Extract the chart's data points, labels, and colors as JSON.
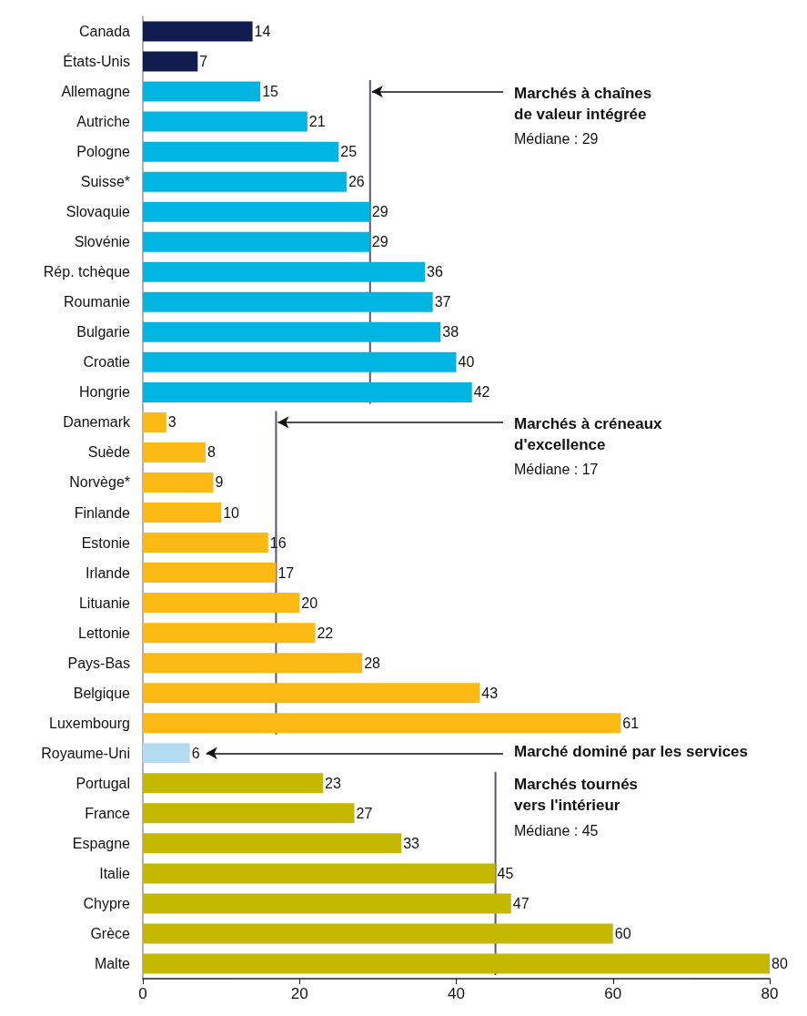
{
  "chart_data": {
    "type": "bar",
    "orientation": "horizontal",
    "categories": [
      "Canada",
      "États-Unis",
      "Allemagne",
      "Autriche",
      "Pologne",
      "Suisse*",
      "Slovaquie",
      "Slovénie",
      "Rép. tchèque",
      "Roumanie",
      "Bulgarie",
      "Croatie",
      "Hongrie",
      "Danemark",
      "Suède",
      "Norvège*",
      "Finlande",
      "Estonie",
      "Irlande",
      "Lituanie",
      "Lettonie",
      "Pays-Bas",
      "Belgique",
      "Luxembourg",
      "Royaume-Uni",
      "Portugal",
      "France",
      "Espagne",
      "Italie",
      "Chypre",
      "Grèce",
      "Malte"
    ],
    "values": [
      14,
      7,
      15,
      21,
      25,
      26,
      29,
      29,
      36,
      37,
      38,
      40,
      42,
      3,
      8,
      9,
      10,
      16,
      17,
      20,
      22,
      28,
      43,
      61,
      6,
      23,
      27,
      33,
      45,
      47,
      60,
      80
    ],
    "colors": [
      "#0f1c4d",
      "#0f1c4d",
      "#00b5e2",
      "#00b5e2",
      "#00b5e2",
      "#00b5e2",
      "#00b5e2",
      "#00b5e2",
      "#00b5e2",
      "#00b5e2",
      "#00b5e2",
      "#00b5e2",
      "#00b5e2",
      "#fbb914",
      "#fbb914",
      "#fbb914",
      "#fbb914",
      "#fbb914",
      "#fbb914",
      "#fbb914",
      "#fbb914",
      "#fbb914",
      "#fbb914",
      "#fbb914",
      "#b3dcf2",
      "#c4b800",
      "#c4b800",
      "#c4b800",
      "#c4b800",
      "#c4b800",
      "#c4b800",
      "#c4b800"
    ],
    "data_labels": true,
    "xlim": [
      0,
      80
    ],
    "xticks": [
      0,
      20,
      40,
      60,
      80
    ],
    "grid": false,
    "ref_lines": [
      {
        "axis": "x",
        "value": 29,
        "color": "#5e5277"
      },
      {
        "axis": "x",
        "value": 17,
        "color": "#5e5277"
      },
      {
        "axis": "x",
        "value": 45,
        "color": "#5e5277"
      }
    ],
    "annotations": [
      {
        "text": "Marchés à chaînes de valeur intégrée",
        "x": 29,
        "y": "Allemagne"
      },
      "Médiane : 29",
      {
        "text": "Marchés à créneaux d'excellence",
        "x": 17,
        "y": "Danemark"
      },
      "Médiane : 17",
      "Marché dominé par les services",
      {
        "text": "Marchés tournés vers l'intérieur",
        "x": 45,
        "y": "Portugal"
      },
      "Médiane : 45"
    ]
  }
}
